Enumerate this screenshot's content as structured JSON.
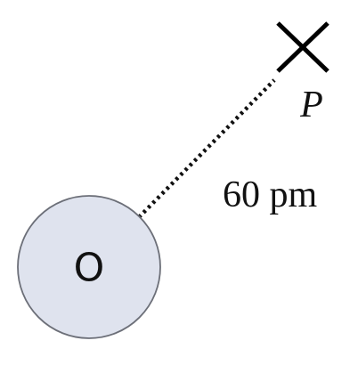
{
  "atom": {
    "label": "O",
    "fill_color": "#dfe3ee",
    "stroke_color": "#6c6f78"
  },
  "point": {
    "label": "P",
    "marker_icon": "cross-icon"
  },
  "distance": {
    "label": "60 pm",
    "line_style": "dotted"
  }
}
